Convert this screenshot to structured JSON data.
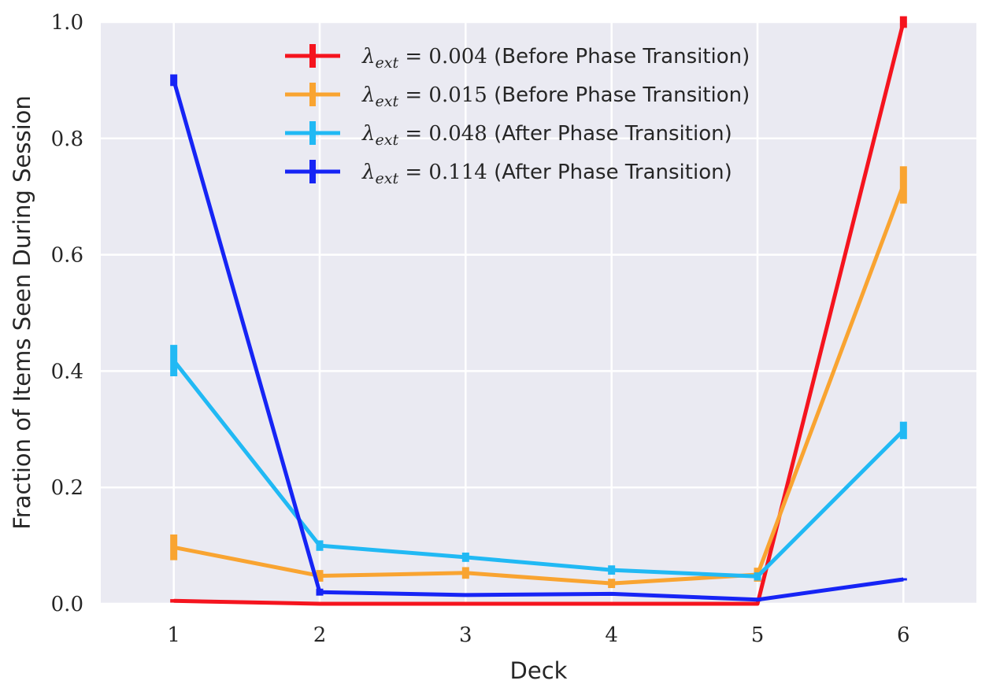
{
  "chart_data": {
    "type": "line",
    "title": "",
    "xlabel": "Deck",
    "ylabel": "Fraction of Items Seen During Session",
    "x": [
      1,
      2,
      3,
      4,
      5,
      6
    ],
    "xlim": [
      0.5,
      6.5
    ],
    "ylim": [
      0,
      1.0
    ],
    "x_ticks": [
      "1",
      "2",
      "3",
      "4",
      "5",
      "6"
    ],
    "y_ticks": [
      "0.0",
      "0.2",
      "0.4",
      "0.6",
      "0.8",
      "1.0"
    ],
    "grid": true,
    "legend_position": "top-center",
    "series": [
      {
        "name": "λext = 0.004 (Before Phase Transition)",
        "lambda_value": "0.004",
        "phase_note": "(Before Phase Transition)",
        "color": "#f5141e",
        "values": [
          0.005,
          0.0,
          0.0,
          0.0,
          0.0,
          1.0
        ],
        "error": [
          0.003,
          0.0,
          0.0,
          0.0,
          0.0,
          0.01
        ]
      },
      {
        "name": "λext = 0.015 (Before Phase Transition)",
        "lambda_value": "0.015",
        "phase_note": "(Before Phase Transition)",
        "color": "#f9a431",
        "values": [
          0.097,
          0.048,
          0.053,
          0.035,
          0.05,
          0.72
        ],
        "error": [
          0.022,
          0.01,
          0.01,
          0.008,
          0.012,
          0.032
        ]
      },
      {
        "name": "λext = 0.048 (After Phase Transition)",
        "lambda_value": "0.048",
        "phase_note": "(After Phase Transition)",
        "color": "#21b9f4",
        "values": [
          0.418,
          0.1,
          0.08,
          0.058,
          0.047,
          0.298
        ],
        "error": [
          0.027,
          0.009,
          0.008,
          0.008,
          0.007,
          0.015
        ]
      },
      {
        "name": "λext = 0.114 (After Phase Transition)",
        "lambda_value": "0.114",
        "phase_note": "(After Phase Transition)",
        "color": "#1624f5",
        "values": [
          0.9,
          0.02,
          0.015,
          0.017,
          0.007,
          0.042
        ],
        "error": [
          0.01,
          0.006,
          0.002,
          0.002,
          0.003,
          0.002
        ]
      }
    ]
  }
}
